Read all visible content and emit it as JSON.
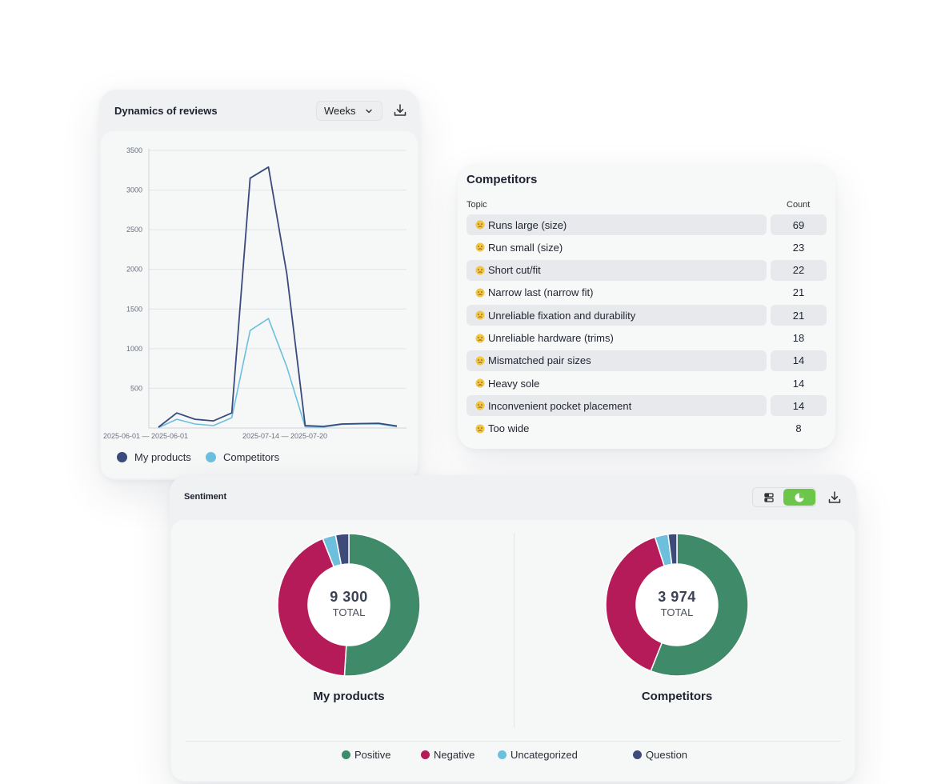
{
  "dynamics": {
    "title": "Dynamics of reviews",
    "period_select": "Weeks",
    "icons": {
      "dropdown": "chevron-down-icon",
      "download": "download-icon"
    }
  },
  "chart_data": {
    "type": "line",
    "title": "",
    "xlabel": "",
    "ylabel": "",
    "ylim": [
      0,
      3500
    ],
    "y_ticks": [
      500,
      1000,
      1500,
      2000,
      2500,
      3000,
      3500
    ],
    "x_tick_labels": [
      "2025-06-01 — 2025-06-01",
      "2025-07-14 — 2025-07-20"
    ],
    "grid": true,
    "legend": "bottom-left",
    "series": [
      {
        "name": "My products",
        "color": "#3a4a7c",
        "values": [
          10,
          190,
          110,
          90,
          190,
          3150,
          3290,
          1940,
          30,
          20,
          50,
          55,
          60,
          25
        ]
      },
      {
        "name": "Competitors",
        "color": "#6cc0dd",
        "values": [
          5,
          110,
          50,
          30,
          130,
          1230,
          1380,
          770,
          15,
          10,
          45,
          50,
          50,
          15
        ]
      }
    ]
  },
  "competitors": {
    "title": "Competitors",
    "columns": [
      "Topic",
      "Count"
    ],
    "rows": [
      {
        "topic": "Runs large (size)",
        "count": "69"
      },
      {
        "topic": "Run small (size)",
        "count": "23"
      },
      {
        "topic": "Short cut/fit",
        "count": "22"
      },
      {
        "topic": "Narrow last (narrow fit)",
        "count": "21"
      },
      {
        "topic": "Unreliable fixation and durability",
        "count": "21"
      },
      {
        "topic": "Unreliable hardware (trims)",
        "count": "18"
      },
      {
        "topic": "Mismatched pair sizes",
        "count": "14"
      },
      {
        "topic": "Heavy sole",
        "count": "14"
      },
      {
        "topic": "Inconvenient pocket placement",
        "count": "14"
      },
      {
        "topic": "Too wide",
        "count": "8"
      }
    ],
    "row_icon": "sad-face-icon"
  },
  "sentiment": {
    "title": "Sentiment",
    "icons": {
      "view_list": "list-view-icon",
      "view_pie": "pie-chart-icon",
      "download": "download-icon"
    },
    "active_view": "pie",
    "colors": {
      "Positive": "#3f8a68",
      "Negative": "#b51b58",
      "Uncategorized": "#6cc0dd",
      "Question": "#3e4a78"
    },
    "legend": [
      "Positive",
      "Negative",
      "Uncategorized",
      "Question"
    ],
    "donuts": [
      {
        "name": "My products",
        "total": "9 300",
        "total_label": "TOTAL",
        "shares": {
          "Positive": 0.51,
          "Negative": 0.43,
          "Uncategorized": 0.03,
          "Question": 0.03
        }
      },
      {
        "name": "Competitors",
        "total": "3 974",
        "total_label": "TOTAL",
        "shares": {
          "Positive": 0.56,
          "Negative": 0.39,
          "Uncategorized": 0.03,
          "Question": 0.02
        }
      }
    ]
  }
}
